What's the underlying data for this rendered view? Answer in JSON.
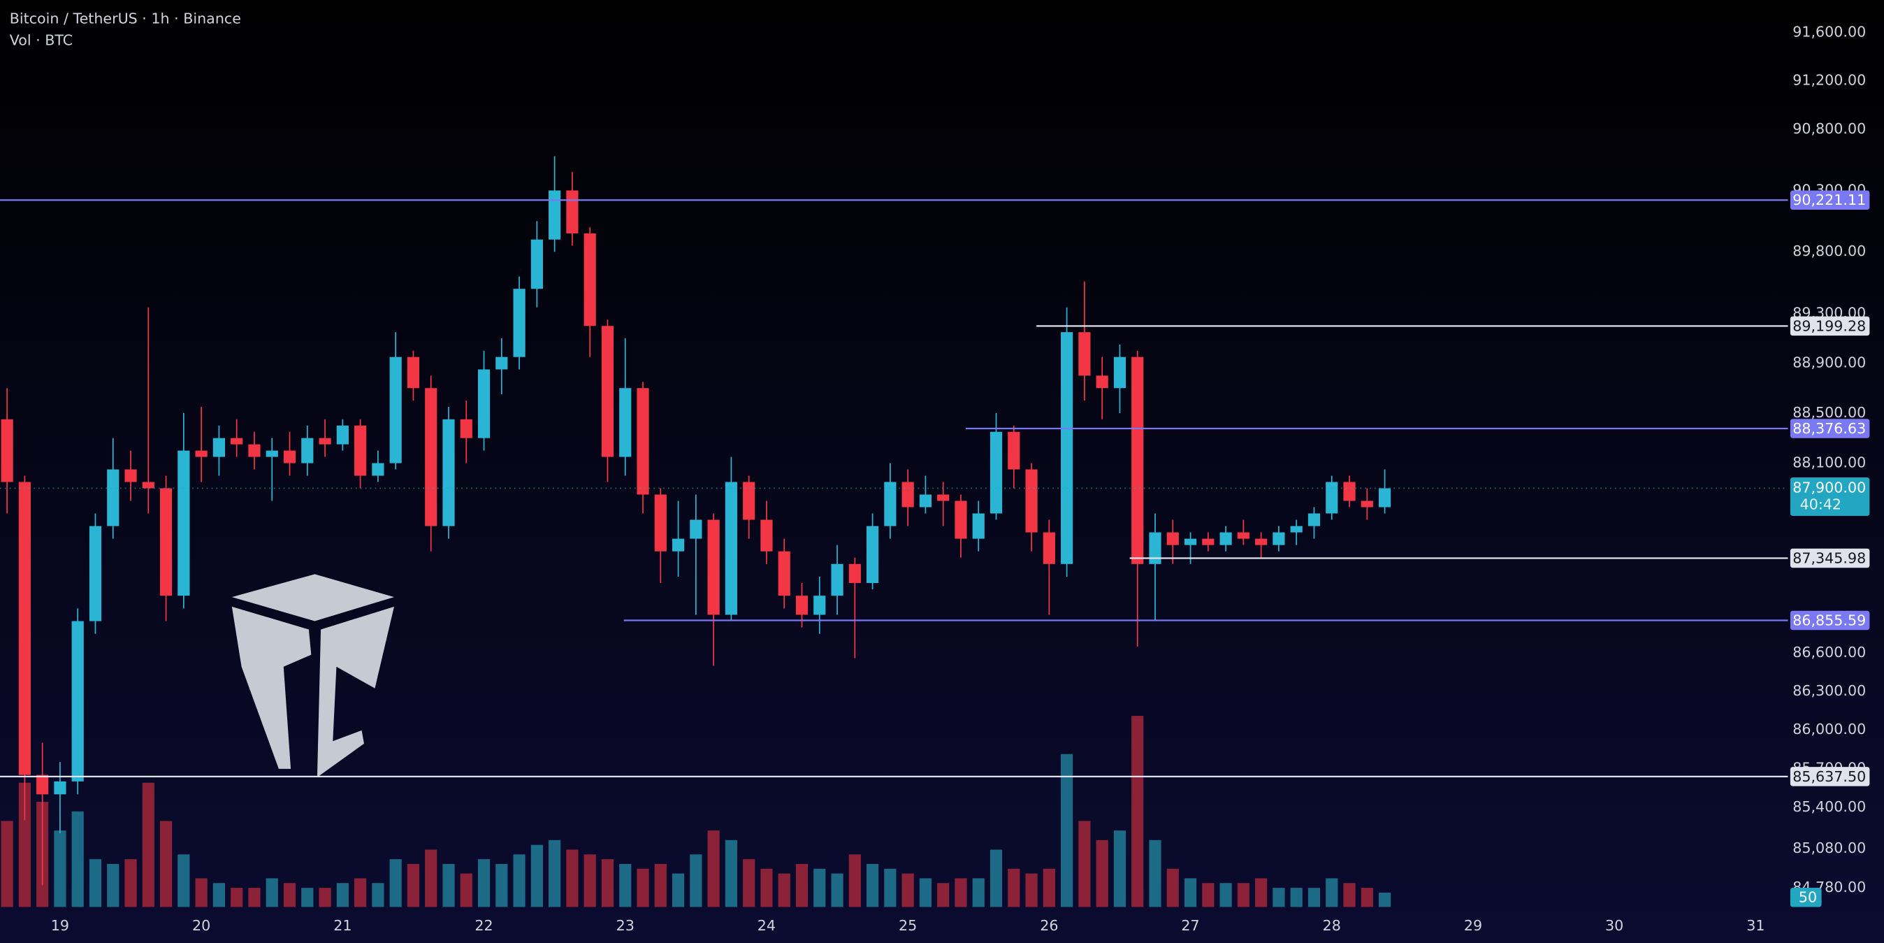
{
  "chart_data": {
    "type": "candlestick",
    "title": "Bitcoin / TetherUS · 1h · Binance",
    "subtitle": "Vol · BTC",
    "log_scale": true,
    "grid": false,
    "up_color": "#2bb5d4",
    "down_color": "#f23645",
    "volume_up_color": "#1d6a86",
    "volume_down_color": "#8c2238",
    "xlim": [
      18.575,
      31.228
    ],
    "xticks": [
      19,
      20,
      21,
      22,
      23,
      24,
      25,
      26,
      27,
      28,
      29,
      30,
      31
    ],
    "ylim": [
      84615,
      91869
    ],
    "yticks": [
      {
        "value": 91600,
        "label": "91,600.00"
      },
      {
        "value": 91200,
        "label": "91,200.00"
      },
      {
        "value": 90800,
        "label": "90,800.00"
      },
      {
        "value": 90300,
        "label": "90,300.00"
      },
      {
        "value": 89800,
        "label": "89,800.00"
      },
      {
        "value": 89300,
        "label": "89,300.00"
      },
      {
        "value": 88900,
        "label": "88,900.00"
      },
      {
        "value": 88500,
        "label": "88,500.00"
      },
      {
        "value": 88100,
        "label": "88,100.00"
      },
      {
        "value": 86600,
        "label": "86,600.00"
      },
      {
        "value": 86300,
        "label": "86,300.00"
      },
      {
        "value": 86000,
        "label": "86,000.00"
      },
      {
        "value": 85700,
        "label": "85,700.00"
      },
      {
        "value": 85400,
        "label": "85,400.00"
      },
      {
        "value": 85080,
        "label": "85,080.00"
      },
      {
        "value": 84780,
        "label": "84,780.00"
      }
    ],
    "vol_ylim": [
      0,
      2200
    ],
    "x": [
      18.625,
      18.75,
      18.875,
      19,
      19.125,
      19.25,
      19.375,
      19.5,
      19.625,
      19.75,
      19.875,
      20,
      20.125,
      20.25,
      20.375,
      20.5,
      20.625,
      20.75,
      20.875,
      21,
      21.125,
      21.25,
      21.375,
      21.5,
      21.625,
      21.75,
      21.875,
      22,
      22.125,
      22.25,
      22.375,
      22.5,
      22.625,
      22.75,
      22.875,
      23,
      23.125,
      23.25,
      23.375,
      23.5,
      23.625,
      23.75,
      23.875,
      24,
      24.125,
      24.25,
      24.375,
      24.5,
      24.625,
      24.75,
      24.875,
      25,
      25.125,
      25.25,
      25.375,
      25.5,
      25.625,
      25.75,
      25.875,
      26,
      26.125,
      26.25,
      26.375,
      26.5,
      26.625,
      26.75,
      26.875,
      27,
      27.125,
      27.25,
      27.375,
      27.5,
      27.625,
      27.75,
      27.875,
      28,
      28.125,
      28.25,
      28.375
    ],
    "open": [
      88450,
      87950,
      85650,
      85500,
      85600,
      86850,
      87600,
      88050,
      87950,
      87900,
      87050,
      88200,
      88150,
      88300,
      88250,
      88150,
      88200,
      88100,
      88300,
      88250,
      88400,
      88000,
      88100,
      88950,
      88700,
      87600,
      88450,
      88300,
      88850,
      88950,
      89500,
      89900,
      90300,
      89950,
      89200,
      88150,
      88700,
      87850,
      87400,
      87500,
      87650,
      86900,
      87950,
      87650,
      87400,
      87050,
      86900,
      87050,
      87300,
      87150,
      87600,
      87950,
      87750,
      87850,
      87800,
      87500,
      87700,
      88350,
      88050,
      87550,
      87300,
      89150,
      88800,
      88700,
      88950,
      87300,
      87550,
      87450,
      87500,
      87450,
      87550,
      87500,
      87450,
      87550,
      87600,
      87700,
      87950,
      87800,
      87750
    ],
    "high": [
      88700,
      88000,
      85900,
      85750,
      86950,
      87700,
      88300,
      88200,
      89350,
      88000,
      88500,
      88550,
      88400,
      88450,
      88350,
      88300,
      88350,
      88400,
      88450,
      88450,
      88450,
      88200,
      89150,
      89000,
      88800,
      88550,
      88600,
      89000,
      89100,
      89600,
      90050,
      90580,
      90450,
      90000,
      89250,
      89100,
      88750,
      87900,
      87800,
      87850,
      87700,
      88150,
      88000,
      87800,
      87500,
      87150,
      87200,
      87450,
      87350,
      87700,
      88100,
      88050,
      88000,
      87950,
      87850,
      87800,
      88500,
      88400,
      88100,
      87650,
      89350,
      89560,
      88950,
      89050,
      89000,
      87700,
      87650,
      87550,
      87550,
      87600,
      87650,
      87550,
      87600,
      87650,
      87750,
      88000,
      88000,
      87900,
      88050
    ],
    "low": [
      87700,
      85300,
      84800,
      85200,
      85500,
      86750,
      87500,
      87800,
      87700,
      86850,
      86950,
      87950,
      88000,
      88150,
      88050,
      87800,
      88000,
      88000,
      88150,
      88200,
      87900,
      87950,
      88050,
      88600,
      87400,
      87500,
      88100,
      88200,
      88650,
      88850,
      89350,
      89800,
      89850,
      88950,
      87950,
      88000,
      87700,
      87150,
      87200,
      86900,
      86500,
      86850,
      87500,
      87300,
      86950,
      86800,
      86750,
      86900,
      86560,
      87100,
      87500,
      87600,
      87700,
      87600,
      87350,
      87400,
      87650,
      87900,
      87400,
      86900,
      87200,
      88600,
      88450,
      88500,
      86650,
      86850,
      87300,
      87300,
      87400,
      87400,
      87450,
      87350,
      87400,
      87450,
      87500,
      87650,
      87750,
      87650,
      87700
    ],
    "close": [
      87950,
      85650,
      85500,
      85600,
      86850,
      87600,
      88050,
      87950,
      87900,
      87050,
      88200,
      88150,
      88300,
      88250,
      88150,
      88200,
      88100,
      88300,
      88250,
      88400,
      88000,
      88100,
      88950,
      88700,
      87600,
      88450,
      88300,
      88850,
      88950,
      89500,
      89900,
      90300,
      89950,
      89200,
      88150,
      88700,
      87850,
      87400,
      87500,
      87650,
      86900,
      87950,
      87650,
      87400,
      87050,
      86900,
      87050,
      87300,
      87150,
      87600,
      87950,
      87750,
      87850,
      87800,
      87500,
      87700,
      88350,
      88050,
      87550,
      87300,
      89150,
      88800,
      88700,
      88950,
      87300,
      87550,
      87450,
      87500,
      87450,
      87550,
      87500,
      87450,
      87550,
      87600,
      87700,
      87950,
      87800,
      87750,
      87900
    ],
    "volume": [
      900,
      1300,
      1100,
      800,
      1000,
      500,
      450,
      500,
      1300,
      900,
      550,
      300,
      250,
      200,
      200,
      300,
      250,
      200,
      200,
      250,
      300,
      250,
      500,
      450,
      600,
      450,
      350,
      500,
      450,
      550,
      650,
      700,
      600,
      550,
      500,
      450,
      400,
      450,
      350,
      550,
      800,
      700,
      500,
      400,
      350,
      450,
      400,
      350,
      550,
      450,
      400,
      350,
      300,
      250,
      300,
      300,
      600,
      400,
      350,
      400,
      1600,
      900,
      700,
      800,
      2000,
      700,
      400,
      300,
      250,
      250,
      250,
      300,
      200,
      200,
      200,
      300,
      250,
      200,
      150
    ],
    "current_volume": 50,
    "last_price": {
      "value": 87900,
      "label": "87,900.00",
      "countdown": "40:42",
      "color": "#22a6c2"
    },
    "levels": [
      {
        "value": 90221.11,
        "label": "90,221.11",
        "color": "#7a78f2"
      },
      {
        "value": 89199.28,
        "label": "89,199.28",
        "color": "#e0e3eb",
        "from": 25.91
      },
      {
        "value": 88376.63,
        "label": "88,376.63",
        "color": "#7a78f2",
        "from": 25.41
      },
      {
        "value": 87345.98,
        "label": "87,345.98",
        "color": "#e0e3eb",
        "from": 26.57
      },
      {
        "value": 86855.59,
        "label": "86,855.59",
        "color": "#7a78f2",
        "from": 22.99
      },
      {
        "value": 85637.5,
        "label": "85,637.50",
        "color": "#e0e3eb"
      }
    ]
  }
}
